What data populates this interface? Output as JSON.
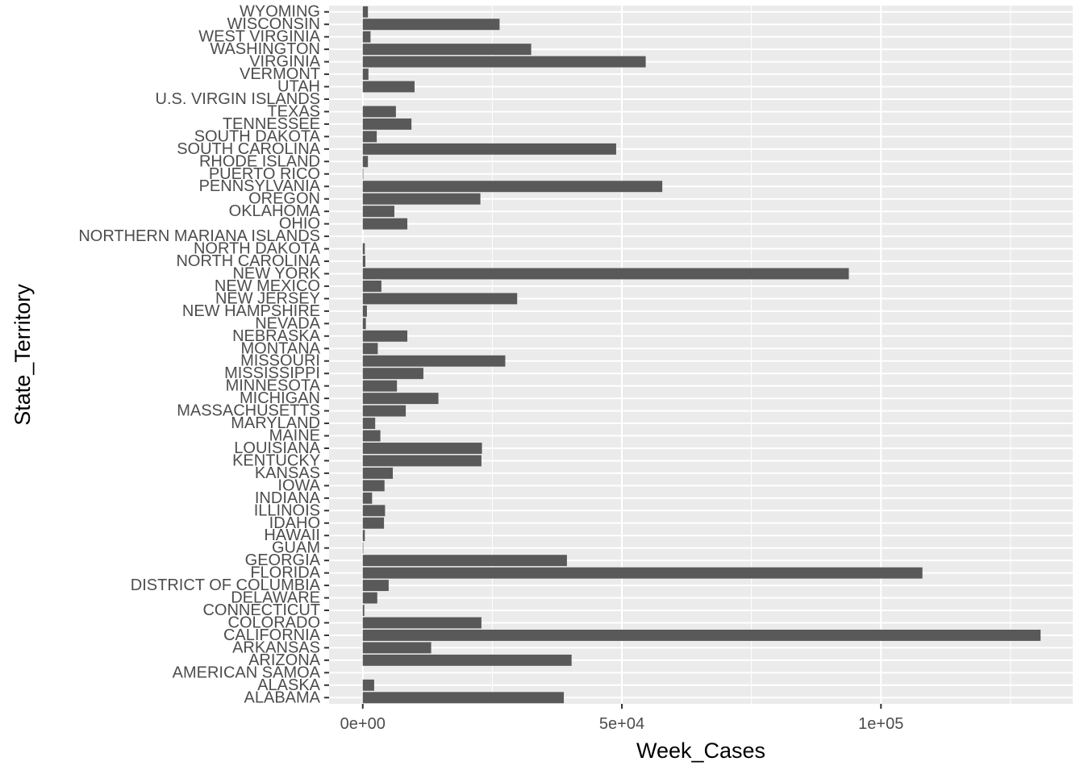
{
  "chart_data": {
    "type": "bar",
    "orientation": "horizontal",
    "xlabel": "Week_Cases",
    "ylabel": "State_Territory",
    "xlim": [
      -6500,
      137000
    ],
    "x_ticks": [
      {
        "value": 0,
        "label": "0e+00"
      },
      {
        "value": 50000,
        "label": "5e+04"
      },
      {
        "value": 100000,
        "label": "1e+05"
      }
    ],
    "x_minor_ticks": [
      25000,
      75000,
      125000
    ],
    "grid": true,
    "colors": {
      "panel": "#ebebeb",
      "grid": "#ffffff",
      "bar": "#595959",
      "tick_text": "#4d4d4d",
      "tick_mark": "#333333"
    },
    "categories": [
      "ALABAMA",
      "ALASKA",
      "AMERICAN SAMOA",
      "ARIZONA",
      "ARKANSAS",
      "CALIFORNIA",
      "COLORADO",
      "CONNECTICUT",
      "DELAWARE",
      "DISTRICT OF COLUMBIA",
      "FLORIDA",
      "GEORGIA",
      "GUAM",
      "HAWAII",
      "IDAHO",
      "ILLINOIS",
      "INDIANA",
      "IOWA",
      "KANSAS",
      "KENTUCKY",
      "LOUISIANA",
      "MAINE",
      "MARYLAND",
      "MASSACHUSETTS",
      "MICHIGAN",
      "MINNESOTA",
      "MISSISSIPPI",
      "MISSOURI",
      "MONTANA",
      "NEBRASKA",
      "NEVADA",
      "NEW HAMPSHIRE",
      "NEW JERSEY",
      "NEW MEXICO",
      "NEW YORK",
      "NORTH CAROLINA",
      "NORTH DAKOTA",
      "NORTHERN MARIANA ISLANDS",
      "OHIO",
      "OKLAHOMA",
      "OREGON",
      "PENNSYLVANIA",
      "PUERTO RICO",
      "RHODE ISLAND",
      "SOUTH CAROLINA",
      "SOUTH DAKOTA",
      "TENNESSEE",
      "TEXAS",
      "U.S. VIRGIN ISLANDS",
      "UTAH",
      "VERMONT",
      "VIRGINIA",
      "WASHINGTON",
      "WEST VIRGINIA",
      "WISCONSIN",
      "WYOMING"
    ],
    "values": [
      38800,
      2200,
      0,
      40300,
      13200,
      130800,
      22900,
      300,
      2800,
      5000,
      108000,
      39400,
      100,
      400,
      4100,
      4300,
      1800,
      4200,
      5800,
      22900,
      23000,
      3400,
      2400,
      8300,
      14600,
      6600,
      11700,
      27500,
      2900,
      8600,
      600,
      800,
      29800,
      3600,
      93800,
      500,
      400,
      0,
      8600,
      6100,
      22700,
      57800,
      100,
      1000,
      48900,
      2700,
      9400,
      6400,
      0,
      10000,
      1100,
      54600,
      32500,
      1500,
      26400,
      1000
    ]
  }
}
